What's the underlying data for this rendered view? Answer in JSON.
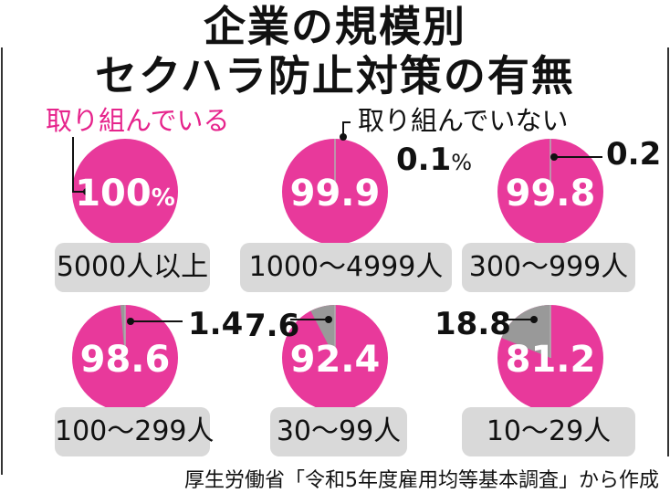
{
  "title": {
    "line1": "企業の規模別",
    "line2": "セクハラ防止対策の有無"
  },
  "legend": {
    "implementing": "取り組んでいる",
    "not_implementing": "取り組んでいない"
  },
  "colors": {
    "implementing": "#e8399b",
    "not_implementing": "#999999"
  },
  "source": "厚生労働省「令和5年度雇用均等基本調査」から作成",
  "chart_data": {
    "type": "pie",
    "unit": "%",
    "series_names": [
      "取り組んでいる",
      "取り組んでいない"
    ],
    "pies": [
      {
        "category": "5000人以上",
        "implementing": 100,
        "not_implementing": 0,
        "implementing_label": "100",
        "not_implementing_label": "",
        "unit_label": "%"
      },
      {
        "category": "1000～4999人",
        "implementing": 99.9,
        "not_implementing": 0.1,
        "implementing_label": "99.9",
        "not_implementing_label": "0.1",
        "unit_label": "%"
      },
      {
        "category": "300～999人",
        "implementing": 99.8,
        "not_implementing": 0.2,
        "implementing_label": "99.8",
        "not_implementing_label": "0.2",
        "unit_label": ""
      },
      {
        "category": "100～299人",
        "implementing": 98.6,
        "not_implementing": 1.4,
        "implementing_label": "98.6",
        "not_implementing_label": "1.4",
        "unit_label": ""
      },
      {
        "category": "30～99人",
        "implementing": 92.4,
        "not_implementing": 7.6,
        "implementing_label": "92.4",
        "not_implementing_label": "7.6",
        "unit_label": ""
      },
      {
        "category": "10～29人",
        "implementing": 81.2,
        "not_implementing": 18.8,
        "implementing_label": "81.2",
        "not_implementing_label": "18.8",
        "unit_label": ""
      }
    ]
  }
}
